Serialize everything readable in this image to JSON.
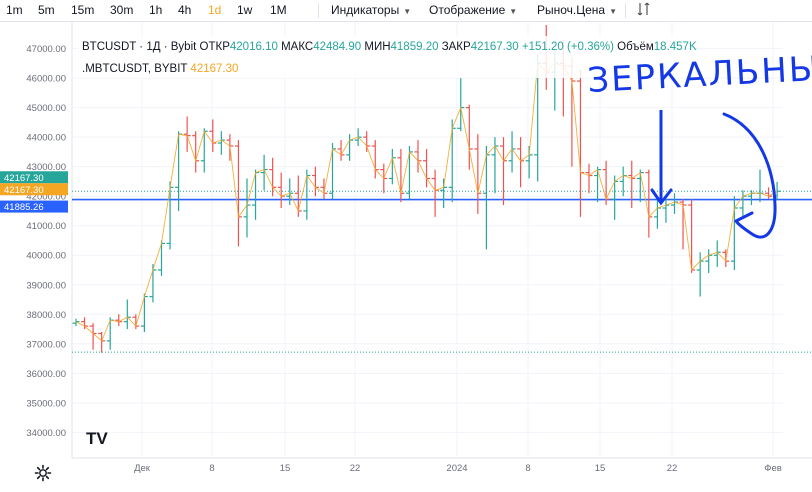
{
  "toolbar": {
    "timeframes": [
      "1m",
      "5m",
      "15m",
      "30m",
      "1h",
      "4h",
      "1d",
      "1w",
      "1M"
    ],
    "active_timeframe": "1d",
    "menus": [
      "Индикаторы",
      "Отображение",
      "Рыноч.Цена"
    ]
  },
  "legend": {
    "symbol": "BTCUSDT",
    "interval": "1Д",
    "exchange": "Bybit",
    "open_label": "ОТКР",
    "open": "42016.10",
    "high_label": "МАКС",
    "high": "42484.90",
    "low_label": "МИН",
    "low": "41859.20",
    "close_label": "ЗАКР",
    "close": "42167.30",
    "change": "+151.20 (+0.36%)",
    "volume_label": "Объём",
    "volume": "18.457K",
    "symbol2": ".MBTCUSDT, BYBIT",
    "value2": "42167.30"
  },
  "price_tags": {
    "last": "42167.30",
    "line": "42167.30",
    "level": "41885.26"
  },
  "annotation_text": "ЗЕРКАЛЬНЫЙ",
  "logo_text": "TV",
  "colors": {
    "up": "#26a69a",
    "down": "#ef5350",
    "line": "#f5a623",
    "level": "#2962ff",
    "annotation": "#1438e6",
    "dotted_green": "#26a69a"
  },
  "chart_data": {
    "type": "ohlc",
    "y_ticks": [
      "47000.00",
      "46000.00",
      "45000.00",
      "44000.00",
      "43000.00",
      "42000.00",
      "41000.00",
      "40000.00",
      "39000.00",
      "38000.00",
      "37000.00",
      "36000.00",
      "35000.00",
      "34000.00"
    ],
    "x_ticks": [
      "Дек",
      "8",
      "15",
      "22",
      "2024",
      "8",
      "15",
      "22",
      "Фев"
    ],
    "ylim": [
      33200,
      47900
    ],
    "horizontal_level": 41885.26,
    "last_price": 42167.3,
    "dotted_lower": 36720,
    "candles": [
      {
        "o": 37700,
        "h": 37850,
        "l": 37600,
        "c": 37750
      },
      {
        "o": 37750,
        "h": 37900,
        "l": 37500,
        "c": 37600
      },
      {
        "o": 37600,
        "h": 37700,
        "l": 36800,
        "c": 37350
      },
      {
        "o": 37350,
        "h": 37400,
        "l": 36700,
        "c": 37100
      },
      {
        "o": 37100,
        "h": 37900,
        "l": 36800,
        "c": 37800
      },
      {
        "o": 37800,
        "h": 38000,
        "l": 37600,
        "c": 37750
      },
      {
        "o": 37750,
        "h": 38500,
        "l": 37500,
        "c": 37900
      },
      {
        "o": 37900,
        "h": 38000,
        "l": 37500,
        "c": 37600
      },
      {
        "o": 37600,
        "h": 38700,
        "l": 37400,
        "c": 38600
      },
      {
        "o": 38600,
        "h": 39700,
        "l": 38400,
        "c": 39500
      },
      {
        "o": 39500,
        "h": 40500,
        "l": 39300,
        "c": 40400
      },
      {
        "o": 40400,
        "h": 42500,
        "l": 40200,
        "c": 42300
      },
      {
        "o": 42300,
        "h": 44200,
        "l": 41500,
        "c": 44100
      },
      {
        "o": 44100,
        "h": 44700,
        "l": 43500,
        "c": 44050
      },
      {
        "o": 44050,
        "h": 44200,
        "l": 42800,
        "c": 43200
      },
      {
        "o": 43200,
        "h": 44300,
        "l": 42800,
        "c": 44200
      },
      {
        "o": 44200,
        "h": 44600,
        "l": 43500,
        "c": 43800
      },
      {
        "o": 43800,
        "h": 44200,
        "l": 43400,
        "c": 43900
      },
      {
        "o": 43900,
        "h": 44100,
        "l": 43200,
        "c": 43700
      },
      {
        "o": 43700,
        "h": 43900,
        "l": 40300,
        "c": 41300
      },
      {
        "o": 41300,
        "h": 42600,
        "l": 40600,
        "c": 41700
      },
      {
        "o": 41700,
        "h": 42900,
        "l": 41200,
        "c": 42800
      },
      {
        "o": 42800,
        "h": 43400,
        "l": 42200,
        "c": 42900
      },
      {
        "o": 42900,
        "h": 43300,
        "l": 42000,
        "c": 42300
      },
      {
        "o": 42300,
        "h": 42800,
        "l": 41600,
        "c": 42000
      },
      {
        "o": 42000,
        "h": 42600,
        "l": 41700,
        "c": 42100
      },
      {
        "o": 42100,
        "h": 42700,
        "l": 41300,
        "c": 41500
      },
      {
        "o": 41500,
        "h": 42900,
        "l": 41200,
        "c": 42700
      },
      {
        "o": 42700,
        "h": 43000,
        "l": 42000,
        "c": 42300
      },
      {
        "o": 42300,
        "h": 42600,
        "l": 41900,
        "c": 42100
      },
      {
        "o": 42100,
        "h": 43800,
        "l": 41900,
        "c": 43600
      },
      {
        "o": 43600,
        "h": 43900,
        "l": 43200,
        "c": 43400
      },
      {
        "o": 43400,
        "h": 44100,
        "l": 43200,
        "c": 43900
      },
      {
        "o": 43900,
        "h": 44300,
        "l": 43700,
        "c": 44000
      },
      {
        "o": 44000,
        "h": 44200,
        "l": 43500,
        "c": 43700
      },
      {
        "o": 43700,
        "h": 43900,
        "l": 42600,
        "c": 42900
      },
      {
        "o": 42900,
        "h": 43100,
        "l": 42100,
        "c": 42600
      },
      {
        "o": 42600,
        "h": 43600,
        "l": 42400,
        "c": 43300
      },
      {
        "o": 43300,
        "h": 43600,
        "l": 41800,
        "c": 42100
      },
      {
        "o": 42100,
        "h": 43700,
        "l": 41900,
        "c": 43500
      },
      {
        "o": 43500,
        "h": 43900,
        "l": 42800,
        "c": 43200
      },
      {
        "o": 43200,
        "h": 43600,
        "l": 42300,
        "c": 42600
      },
      {
        "o": 42600,
        "h": 42900,
        "l": 41300,
        "c": 42200
      },
      {
        "o": 42200,
        "h": 42600,
        "l": 41600,
        "c": 42300
      },
      {
        "o": 42300,
        "h": 44600,
        "l": 41800,
        "c": 44300
      },
      {
        "o": 44300,
        "h": 46000,
        "l": 44200,
        "c": 45000
      },
      {
        "o": 45000,
        "h": 45100,
        "l": 42900,
        "c": 43600
      },
      {
        "o": 43600,
        "h": 44100,
        "l": 41400,
        "c": 42100
      },
      {
        "o": 42100,
        "h": 43700,
        "l": 40200,
        "c": 43400
      },
      {
        "o": 43400,
        "h": 44000,
        "l": 42100,
        "c": 43700
      },
      {
        "o": 43700,
        "h": 44000,
        "l": 41700,
        "c": 43200
      },
      {
        "o": 43200,
        "h": 44200,
        "l": 42800,
        "c": 43600
      },
      {
        "o": 43600,
        "h": 44000,
        "l": 42300,
        "c": 43200
      },
      {
        "o": 43200,
        "h": 43700,
        "l": 42600,
        "c": 43400
      },
      {
        "o": 43400,
        "h": 46800,
        "l": 42500,
        "c": 46500
      },
      {
        "o": 46500,
        "h": 47800,
        "l": 45600,
        "c": 46200
      },
      {
        "o": 46200,
        "h": 47000,
        "l": 44900,
        "c": 46500
      },
      {
        "o": 46500,
        "h": 47300,
        "l": 44700,
        "c": 46400
      },
      {
        "o": 46400,
        "h": 46700,
        "l": 43000,
        "c": 45900
      },
      {
        "o": 45900,
        "h": 46300,
        "l": 41300,
        "c": 42800
      },
      {
        "o": 42800,
        "h": 43100,
        "l": 42100,
        "c": 42700
      },
      {
        "o": 42700,
        "h": 43000,
        "l": 41800,
        "c": 42900
      },
      {
        "o": 42900,
        "h": 43200,
        "l": 41700,
        "c": 41900
      },
      {
        "o": 41900,
        "h": 42700,
        "l": 41200,
        "c": 42500
      },
      {
        "o": 42500,
        "h": 43000,
        "l": 42000,
        "c": 42700
      },
      {
        "o": 42700,
        "h": 43200,
        "l": 41600,
        "c": 42600
      },
      {
        "o": 42600,
        "h": 42900,
        "l": 41800,
        "c": 42800
      },
      {
        "o": 42800,
        "h": 42900,
        "l": 40600,
        "c": 41300
      },
      {
        "o": 41300,
        "h": 41900,
        "l": 40900,
        "c": 41600
      },
      {
        "o": 41600,
        "h": 41900,
        "l": 41100,
        "c": 41700
      },
      {
        "o": 41700,
        "h": 42100,
        "l": 41400,
        "c": 41800
      },
      {
        "o": 41800,
        "h": 41900,
        "l": 40200,
        "c": 41700
      },
      {
        "o": 41700,
        "h": 41900,
        "l": 39400,
        "c": 39500
      },
      {
        "o": 39500,
        "h": 40100,
        "l": 38600,
        "c": 39800
      },
      {
        "o": 39800,
        "h": 40200,
        "l": 39400,
        "c": 40000
      },
      {
        "o": 40000,
        "h": 40500,
        "l": 39600,
        "c": 40100
      },
      {
        "o": 40100,
        "h": 40200,
        "l": 39600,
        "c": 39800
      },
      {
        "o": 39800,
        "h": 42000,
        "l": 39500,
        "c": 41600
      },
      {
        "o": 41600,
        "h": 42200,
        "l": 41300,
        "c": 42000
      },
      {
        "o": 42000,
        "h": 42200,
        "l": 41700,
        "c": 42100
      },
      {
        "o": 42100,
        "h": 42900,
        "l": 41800,
        "c": 42100
      },
      {
        "o": 42100,
        "h": 42300,
        "l": 41900,
        "c": 42000
      },
      {
        "o": 42016.1,
        "h": 42484.9,
        "l": 41859.2,
        "c": 42167.3
      }
    ]
  }
}
